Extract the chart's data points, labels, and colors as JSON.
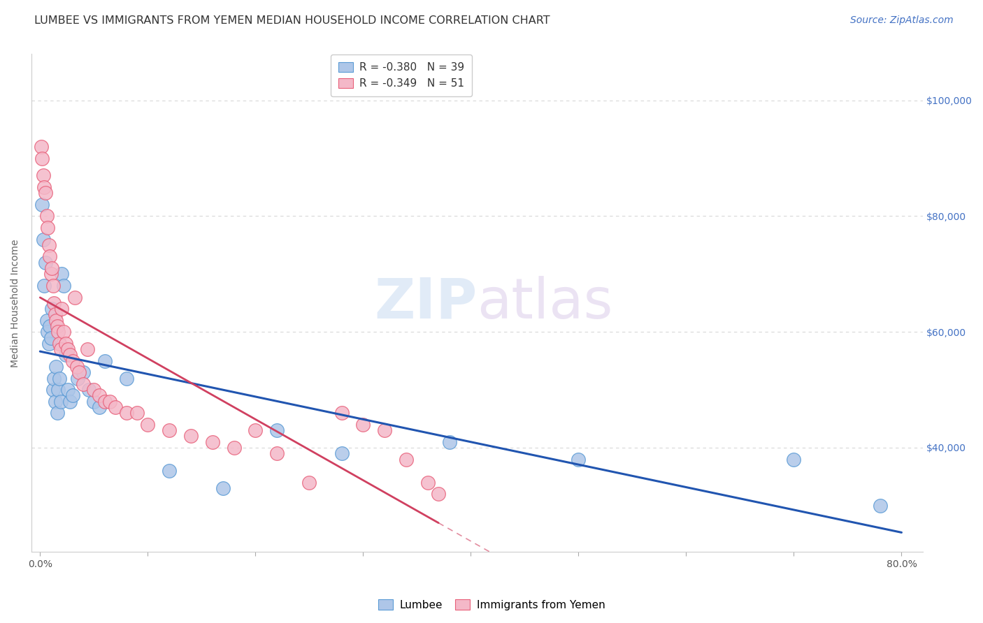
{
  "title": "LUMBEE VS IMMIGRANTS FROM YEMEN MEDIAN HOUSEHOLD INCOME CORRELATION CHART",
  "source": "Source: ZipAtlas.com",
  "ylabel": "Median Household Income",
  "ytick_labels": [
    "$100,000",
    "$80,000",
    "$60,000",
    "$40,000"
  ],
  "ytick_values": [
    100000,
    80000,
    60000,
    40000
  ],
  "ylim": [
    22000,
    108000
  ],
  "xlim": [
    -0.008,
    0.82
  ],
  "legend_blue_R": "-0.380",
  "legend_blue_N": "39",
  "legend_pink_R": "-0.349",
  "legend_pink_N": "51",
  "watermark_zip": "ZIP",
  "watermark_atlas": "atlas",
  "blue_fill": "#aec6e8",
  "blue_edge": "#5b9bd5",
  "pink_fill": "#f4b8c8",
  "pink_edge": "#e8607a",
  "blue_line_color": "#2155b0",
  "pink_line_color": "#d04060",
  "background_color": "#ffffff",
  "grid_color": "#d8d8d8",
  "title_color": "#333333",
  "source_color": "#4472c4",
  "ylabel_color": "#666666",
  "right_tick_color": "#4472c4",
  "lumbee_x": [
    0.002,
    0.003,
    0.004,
    0.005,
    0.006,
    0.007,
    0.008,
    0.009,
    0.01,
    0.011,
    0.012,
    0.013,
    0.014,
    0.015,
    0.016,
    0.017,
    0.018,
    0.019,
    0.02,
    0.022,
    0.024,
    0.026,
    0.028,
    0.03,
    0.035,
    0.04,
    0.045,
    0.05,
    0.055,
    0.06,
    0.08,
    0.12,
    0.17,
    0.22,
    0.28,
    0.38,
    0.5,
    0.7,
    0.78
  ],
  "lumbee_y": [
    82000,
    76000,
    68000,
    72000,
    62000,
    60000,
    58000,
    61000,
    59000,
    64000,
    50000,
    52000,
    48000,
    54000,
    46000,
    50000,
    52000,
    48000,
    70000,
    68000,
    56000,
    50000,
    48000,
    49000,
    52000,
    53000,
    50000,
    48000,
    47000,
    55000,
    52000,
    36000,
    33000,
    43000,
    39000,
    41000,
    38000,
    38000,
    30000
  ],
  "yemen_x": [
    0.001,
    0.002,
    0.003,
    0.004,
    0.005,
    0.006,
    0.007,
    0.008,
    0.009,
    0.01,
    0.011,
    0.012,
    0.013,
    0.014,
    0.015,
    0.016,
    0.017,
    0.018,
    0.019,
    0.02,
    0.022,
    0.024,
    0.026,
    0.028,
    0.03,
    0.032,
    0.034,
    0.036,
    0.04,
    0.044,
    0.05,
    0.055,
    0.06,
    0.065,
    0.07,
    0.08,
    0.09,
    0.1,
    0.12,
    0.14,
    0.16,
    0.18,
    0.2,
    0.22,
    0.25,
    0.28,
    0.3,
    0.32,
    0.34,
    0.36,
    0.37
  ],
  "yemen_y": [
    92000,
    90000,
    87000,
    85000,
    84000,
    80000,
    78000,
    75000,
    73000,
    70000,
    71000,
    68000,
    65000,
    63000,
    62000,
    61000,
    60000,
    58000,
    57000,
    64000,
    60000,
    58000,
    57000,
    56000,
    55000,
    66000,
    54000,
    53000,
    51000,
    57000,
    50000,
    49000,
    48000,
    48000,
    47000,
    46000,
    46000,
    44000,
    43000,
    42000,
    41000,
    40000,
    43000,
    39000,
    34000,
    46000,
    44000,
    43000,
    38000,
    34000,
    32000
  ],
  "title_fontsize": 11.5,
  "axis_label_fontsize": 10,
  "tick_fontsize": 10,
  "legend_fontsize": 11,
  "source_fontsize": 10
}
